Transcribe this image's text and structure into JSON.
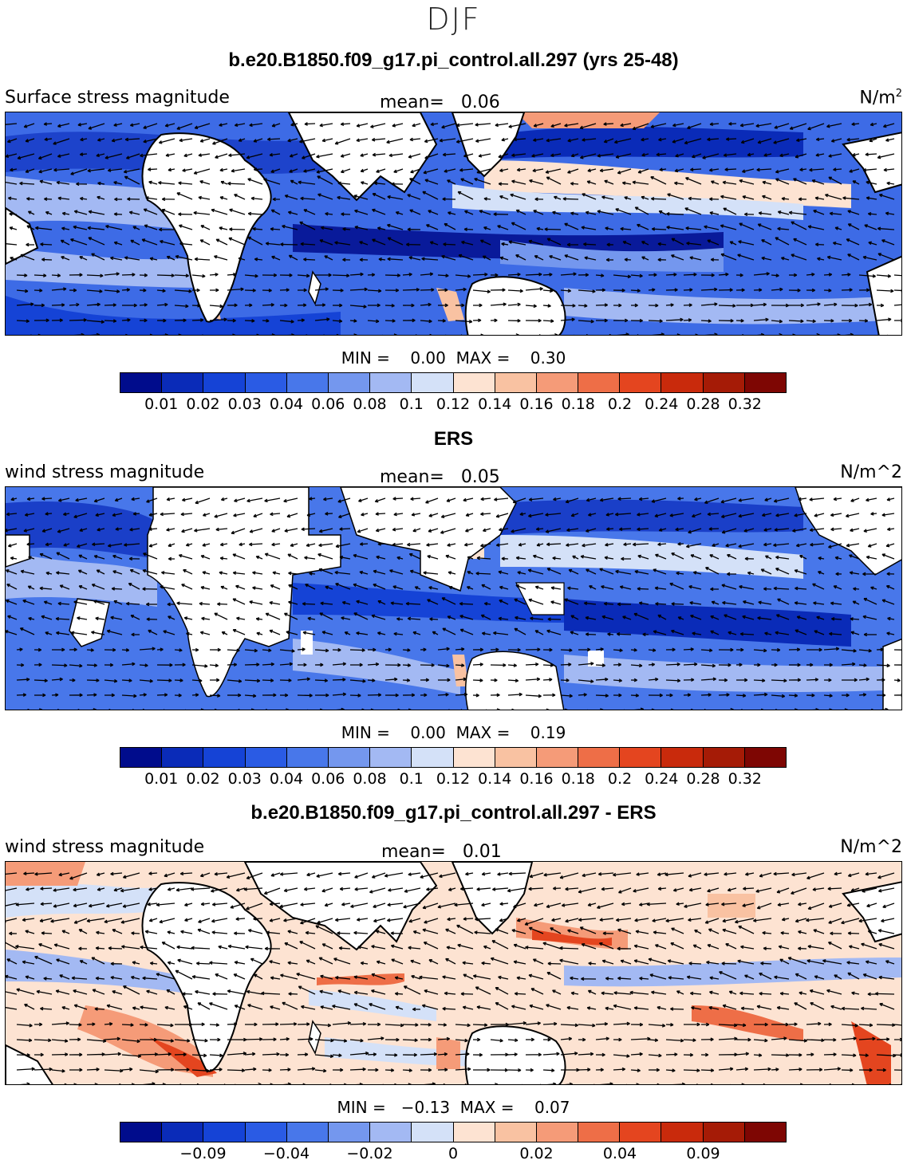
{
  "figure_title": "DJF",
  "colors": {
    "full_scale": [
      "#000c8c",
      "#0a2bb8",
      "#1543d6",
      "#2a5be4",
      "#4877ea",
      "#7497ee",
      "#a3b9f3",
      "#d4e1f8",
      "#fde3d2",
      "#f9c2a2",
      "#f59b78",
      "#ee6e47",
      "#e4451f",
      "#c92a0c",
      "#a51b06",
      "#7e0603"
    ],
    "diff_scale": [
      "#000c8c",
      "#0a2bb8",
      "#1543d6",
      "#2a5be4",
      "#4877ea",
      "#7497ee",
      "#a3b9f3",
      "#d4e1f8",
      "#fde3d2",
      "#f9c2a2",
      "#f59b78",
      "#ee6e47",
      "#e4451f",
      "#c92a0c",
      "#a51b06",
      "#7e0603"
    ]
  },
  "panels": [
    {
      "title": "b.e20.B1850.f09_g17.pi_control.all.297 (yrs 25-48)",
      "left_label": "Surface stress magnitude",
      "mean_label": "mean=",
      "mean_value": "0.06",
      "units": "N/m",
      "units_sup": "2",
      "minmax": "MIN =    0.00  MAX =    0.30",
      "colorbar_ticks": [
        "0.01",
        "0.02",
        "0.03",
        "0.04",
        "0.06",
        "0.08",
        "0.1",
        "0.12",
        "0.14",
        "0.16",
        "0.18",
        "0.2",
        "0.24",
        "0.28",
        "0.32"
      ]
    },
    {
      "title": "ERS",
      "left_label": "wind stress magnitude",
      "mean_label": "mean=",
      "mean_value": "0.05",
      "units": "N/m^2",
      "units_sup": "",
      "minmax": "MIN =    0.00  MAX =    0.19",
      "colorbar_ticks": [
        "0.01",
        "0.02",
        "0.03",
        "0.04",
        "0.06",
        "0.08",
        "0.1",
        "0.12",
        "0.14",
        "0.16",
        "0.18",
        "0.2",
        "0.24",
        "0.28",
        "0.32"
      ]
    },
    {
      "title": "b.e20.B1850.f09_g17.pi_control.all.297 - ERS",
      "left_label": "wind stress magnitude",
      "mean_label": "mean=",
      "mean_value": "0.01",
      "units": "N/m^2",
      "units_sup": "",
      "minmax": "MIN =   −0.13  MAX =    0.07",
      "colorbar_ticks": [
        "−0.09",
        "−0.04",
        "−0.02",
        "0",
        "0.02",
        "0.04",
        "0.09"
      ]
    }
  ]
}
